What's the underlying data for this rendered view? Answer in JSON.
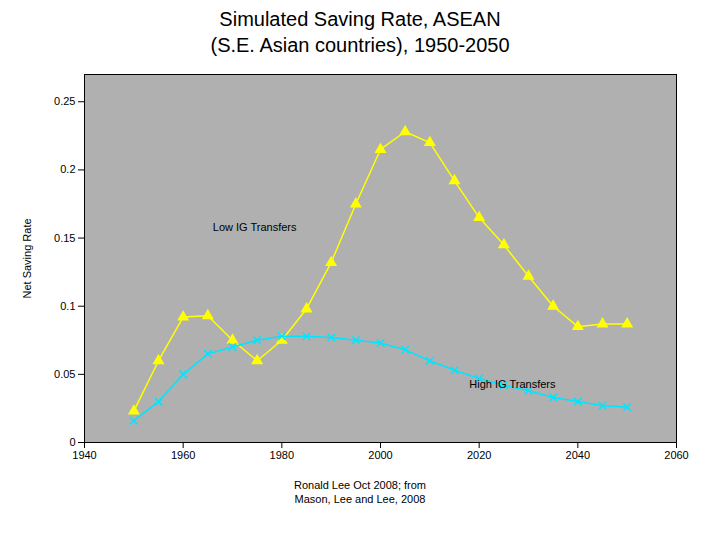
{
  "chart_data": {
    "type": "line",
    "title": "Simulated Saving Rate, ASEAN\n(S.E. Asian countries), 1950-2050",
    "ylabel": "Net Saving Rate",
    "caption": "Ronald Lee Oct 2008; from\nMason, Lee and Lee, 2008",
    "x": [
      1950,
      1955,
      1960,
      1965,
      1970,
      1975,
      1980,
      1985,
      1990,
      1995,
      2000,
      2005,
      2010,
      2015,
      2020,
      2025,
      2030,
      2035,
      2040,
      2045,
      2050
    ],
    "series": [
      {
        "name": "Low IG Transfers",
        "color": "#ffff00",
        "marker": "triangle",
        "values": [
          0.023,
          0.06,
          0.092,
          0.093,
          0.075,
          0.06,
          0.075,
          0.098,
          0.132,
          0.175,
          0.215,
          0.228,
          0.22,
          0.192,
          0.165,
          0.145,
          0.122,
          0.1,
          0.085,
          0.087,
          0.087
        ]
      },
      {
        "name": "High IG Transfers",
        "color": "#00e5ff",
        "marker": "x",
        "values": [
          0.016,
          0.03,
          0.05,
          0.065,
          0.07,
          0.075,
          0.078,
          0.078,
          0.077,
          0.075,
          0.073,
          0.068,
          0.06,
          0.053,
          0.047,
          0.042,
          0.038,
          0.033,
          0.03,
          0.027,
          0.026
        ]
      }
    ],
    "annotations": [
      {
        "text": "Low IG Transfers",
        "x": 1966,
        "y": 0.155
      },
      {
        "text": "High IG Transfers",
        "x": 2018,
        "y": 0.04
      }
    ],
    "xlim": [
      1940,
      2060
    ],
    "xticks": [
      1940,
      1960,
      1980,
      2000,
      2020,
      2040,
      2060
    ],
    "ylim": [
      0,
      0.27
    ],
    "yticks": [
      0,
      0.05,
      0.1,
      0.15,
      0.2,
      0.25
    ],
    "grid": "y"
  }
}
